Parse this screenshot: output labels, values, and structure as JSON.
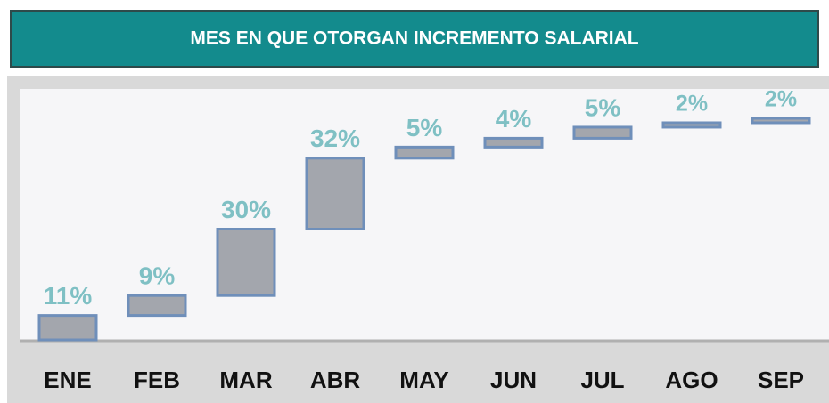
{
  "chart_data": {
    "type": "waterfall",
    "title": "MES EN QUE OTORGAN INCREMENTO SALARIAL",
    "categories": [
      "ENE",
      "FEB",
      "MAR",
      "ABR",
      "MAY",
      "JUN",
      "JUL",
      "AGO",
      "SEP"
    ],
    "values": [
      11,
      9,
      30,
      32,
      5,
      4,
      5,
      2,
      2
    ],
    "value_labels": [
      "11%",
      "9%",
      "30%",
      "32%",
      "5%",
      "4%",
      "5%",
      "2%",
      "2%"
    ],
    "color": "#a3a6ad",
    "edge_color": "#6f8fba",
    "label_color": "#7fc0c4"
  }
}
